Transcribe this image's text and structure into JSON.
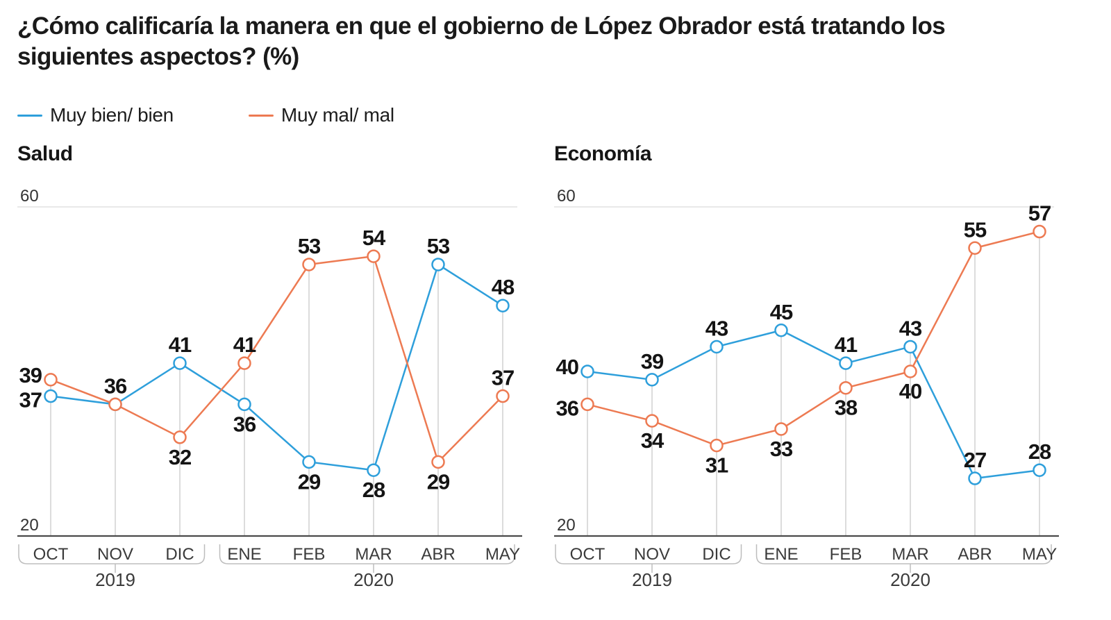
{
  "title": "¿Cómo calificaría la manera en que el gobierno de López Obrador está tratando los siguientes aspectos? (%)",
  "legend": [
    {
      "label": "Muy bien/ bien",
      "color": "#2E9FDB"
    },
    {
      "label": "Muy mal/ mal",
      "color": "#ED7A52"
    }
  ],
  "colors": {
    "blue": "#2E9FDB",
    "orange": "#ED7A52",
    "axis_line": "#4a4a4a",
    "grid_line": "#c9c9c9",
    "top_grid_line": "#d9d9d9",
    "bracket": "#bdbdbd",
    "text_dark": "#1a1a1a"
  },
  "chart_data": [
    {
      "type": "line",
      "title": "Salud",
      "categories": [
        "OCT",
        "NOV",
        "DIC",
        "ENE",
        "FEB",
        "MAR",
        "ABR",
        "MAY"
      ],
      "year_groups": [
        {
          "label": "2019",
          "from": 0,
          "to": 2
        },
        {
          "label": "2020",
          "from": 3,
          "to": 7
        }
      ],
      "ylim": [
        20,
        60
      ],
      "yticks": [
        20,
        60
      ],
      "grid": "top gridline at 60, dark baseline at 20, light vertical line under each point",
      "legend_position": "top-of-page shared",
      "series": [
        {
          "name": "Muy bien/ bien",
          "color": "#2E9FDB",
          "values": [
            37,
            36,
            41,
            36,
            29,
            28,
            53,
            48
          ],
          "label_pos": [
            "left",
            "none",
            "above",
            "below",
            "below",
            "below",
            "above",
            "above"
          ]
        },
        {
          "name": "Muy mal/ mal",
          "color": "#ED7A52",
          "values": [
            39,
            36,
            32,
            41,
            53,
            54,
            29,
            37
          ],
          "label_pos": [
            "left",
            "above",
            "below",
            "above",
            "above",
            "above",
            "below",
            "above"
          ]
        }
      ]
    },
    {
      "type": "line",
      "title": "Economía",
      "categories": [
        "OCT",
        "NOV",
        "DIC",
        "ENE",
        "FEB",
        "MAR",
        "ABR",
        "MAY"
      ],
      "year_groups": [
        {
          "label": "2019",
          "from": 0,
          "to": 2
        },
        {
          "label": "2020",
          "from": 3,
          "to": 7
        }
      ],
      "ylim": [
        20,
        60
      ],
      "yticks": [
        20,
        60
      ],
      "grid": "top gridline at 60, dark baseline at 20, light vertical line under each point",
      "legend_position": "top-of-page shared",
      "series": [
        {
          "name": "Muy bien/ bien",
          "color": "#2E9FDB",
          "values": [
            40,
            39,
            43,
            45,
            41,
            43,
            27,
            28
          ],
          "label_pos": [
            "left",
            "above",
            "above",
            "above",
            "above",
            "above",
            "above",
            "above"
          ]
        },
        {
          "name": "Muy mal/ mal",
          "color": "#ED7A52",
          "values": [
            36,
            34,
            31,
            33,
            38,
            40,
            55,
            57
          ],
          "label_pos": [
            "left",
            "below",
            "below",
            "below",
            "below",
            "below",
            "above",
            "above"
          ]
        }
      ]
    }
  ]
}
